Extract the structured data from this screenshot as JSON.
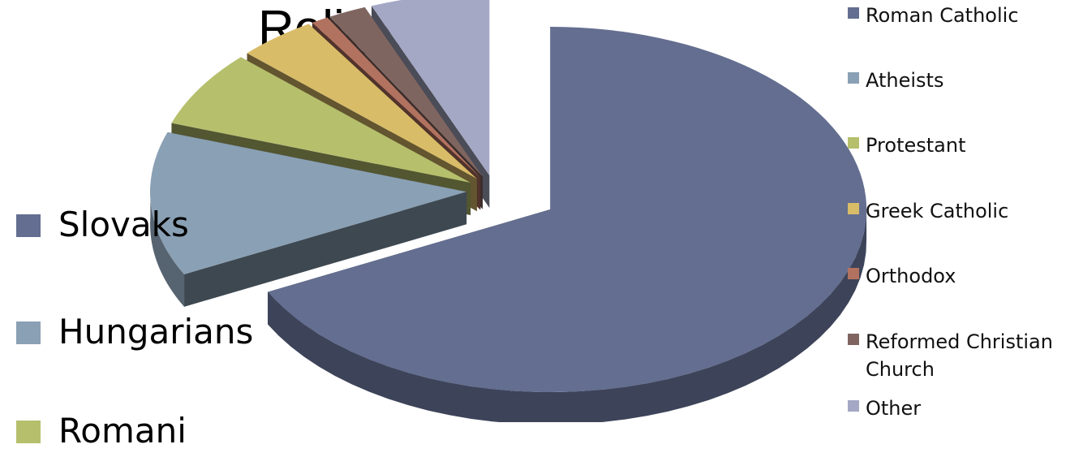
{
  "chart_data": {
    "type": "pie",
    "title": "Religion",
    "categories": [
      "Roman Catholic",
      "Atheists",
      "Protestant",
      "Greek Catholic",
      "Orthodox",
      "Reformed Christian Church",
      "Other"
    ],
    "values": [
      68.9,
      13.0,
      6.9,
      4.1,
      0.9,
      2.0,
      6.2
    ],
    "colors": [
      "#636e90",
      "#8aa0b4",
      "#b6bf6c",
      "#d9bc68",
      "#b27260",
      "#7f6560",
      "#a4a8c4"
    ],
    "legend_position": "right"
  },
  "left_legend": {
    "items": [
      {
        "label": "Slovaks",
        "color": "#636e90"
      },
      {
        "label": "Hungarians",
        "color": "#8aa0b4"
      },
      {
        "label": "Romani",
        "color": "#b6bf6c"
      }
    ]
  }
}
